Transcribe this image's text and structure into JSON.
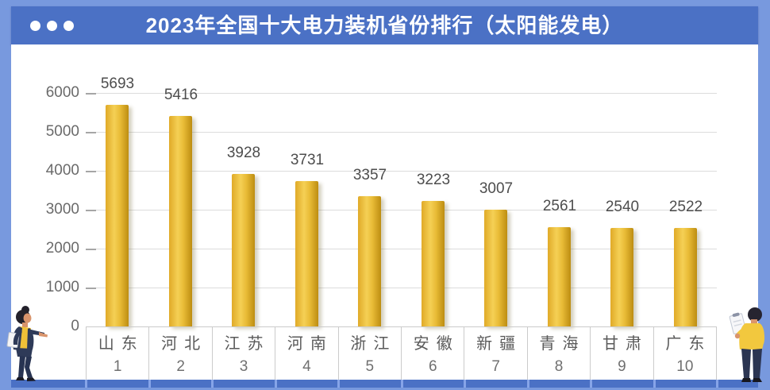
{
  "header": {
    "title": "2023年全国十大电力装机省份排行（太阳能发电）",
    "dots_icon": "three-white-dots"
  },
  "chart_data": {
    "type": "bar",
    "title": "2023年全国十大电力装机省份排行（太阳能发电）",
    "categories": [
      "山东",
      "河北",
      "江苏",
      "河南",
      "浙江",
      "安徽",
      "新疆",
      "青海",
      "甘肃",
      "广东"
    ],
    "ranks": [
      "1",
      "2",
      "3",
      "4",
      "5",
      "6",
      "7",
      "8",
      "9",
      "10"
    ],
    "values": [
      5693,
      5416,
      3928,
      3731,
      3357,
      3223,
      3007,
      2561,
      2540,
      2522
    ],
    "xlabel": "",
    "ylabel": "",
    "yticks": [
      0,
      1000,
      2000,
      3000,
      4000,
      5000,
      6000
    ],
    "ylim": [
      0,
      6000
    ],
    "grid": true,
    "legend": false,
    "value_labels_shown": true
  },
  "colors": {
    "frame_blue": "#7899DE",
    "header_bar_blue": "#4B71C5",
    "bottom_strip_blue": "#4B71C5",
    "strip_tick_blue": "#86A4E8",
    "panel_white": "#FFFFFF",
    "bar_gold_light": "#F5D055",
    "bar_gold_mid": "#E0AA28",
    "bar_gold_dark": "#BD8D11",
    "gridline_gray": "#DCDCDC",
    "axis_text_gray": "#6A6A6A",
    "value_text_gray": "#4D4D4D",
    "category_text_gray": "#5A5A5A",
    "cell_border_gray": "#CBCBCB",
    "title_white": "#FFFFFF"
  }
}
